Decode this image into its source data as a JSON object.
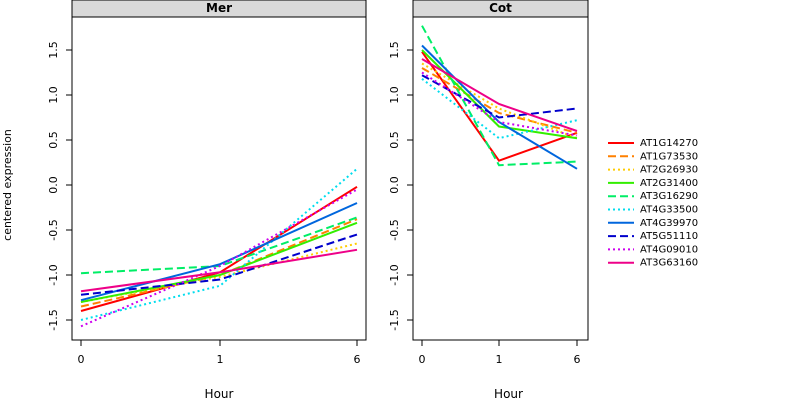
{
  "chart_data": [
    {
      "type": "line",
      "title": "Mer",
      "xlabel": "Hour",
      "ylabel": "centered expression",
      "x_ticks": [
        "0",
        "1",
        "6"
      ],
      "y_ticks": [
        "-1.5",
        "-1.0",
        "-0.5",
        "0.0",
        "0.5",
        "1.0",
        "1.5"
      ],
      "ylim": [
        -1.7,
        1.85
      ],
      "series": [
        {
          "name": "AT1G14270",
          "color": "#ff0000",
          "dash": "solid",
          "values": [
            -1.4,
            -0.97,
            -0.02
          ]
        },
        {
          "name": "AT1G73530",
          "color": "#ff8000",
          "dash": "dashed",
          "values": [
            -1.35,
            -1.0,
            -0.38
          ]
        },
        {
          "name": "AT2G26930",
          "color": "#ffcc00",
          "dash": "dotted",
          "values": [
            -1.3,
            -1.02,
            -0.65
          ]
        },
        {
          "name": "AT2G31400",
          "color": "#33ee00",
          "dash": "solid",
          "values": [
            -1.3,
            -1.0,
            -0.42
          ]
        },
        {
          "name": "AT3G16290",
          "color": "#00ee66",
          "dash": "dashed",
          "values": [
            -0.98,
            -0.9,
            -0.36
          ]
        },
        {
          "name": "AT4G33500",
          "color": "#00ddee",
          "dash": "dotted",
          "values": [
            -1.5,
            -1.12,
            0.18
          ]
        },
        {
          "name": "AT4G39970",
          "color": "#0066dd",
          "dash": "solid",
          "values": [
            -1.28,
            -0.88,
            -0.2
          ]
        },
        {
          "name": "AT5G51110",
          "color": "#0000cc",
          "dash": "dashed",
          "values": [
            -1.22,
            -1.05,
            -0.55
          ]
        },
        {
          "name": "AT4G09010",
          "color": "#cc00ee",
          "dash": "dotted",
          "values": [
            -1.57,
            -0.9,
            -0.05
          ]
        },
        {
          "name": "AT3G63160",
          "color": "#ee0088",
          "dash": "solid",
          "values": [
            -1.18,
            -0.97,
            -0.72
          ]
        }
      ]
    },
    {
      "type": "line",
      "title": "Cot",
      "xlabel": "Hour",
      "ylabel": "",
      "x_ticks": [
        "0",
        "1",
        "6"
      ],
      "y_ticks": [
        "-1.5",
        "-1.0",
        "-0.5",
        "0.0",
        "0.5",
        "1.0",
        "1.5"
      ],
      "ylim": [
        -1.7,
        1.85
      ],
      "series": [
        {
          "name": "AT1G14270",
          "color": "#ff0000",
          "dash": "solid",
          "values": [
            1.48,
            0.27,
            0.58
          ]
        },
        {
          "name": "AT1G73530",
          "color": "#ff8000",
          "dash": "dashed",
          "values": [
            1.3,
            0.8,
            0.58
          ]
        },
        {
          "name": "AT2G26930",
          "color": "#ffcc00",
          "dash": "dotted",
          "values": [
            1.35,
            0.85,
            0.52
          ]
        },
        {
          "name": "AT2G31400",
          "color": "#33ee00",
          "dash": "solid",
          "values": [
            1.5,
            0.65,
            0.52
          ]
        },
        {
          "name": "AT3G16290",
          "color": "#00ee66",
          "dash": "dashed",
          "values": [
            1.77,
            0.22,
            0.26
          ]
        },
        {
          "name": "AT4G33500",
          "color": "#00ddee",
          "dash": "dotted",
          "values": [
            1.18,
            0.52,
            0.72
          ]
        },
        {
          "name": "AT4G39970",
          "color": "#0066dd",
          "dash": "solid",
          "values": [
            1.55,
            0.7,
            0.18
          ]
        },
        {
          "name": "AT5G51110",
          "color": "#0000cc",
          "dash": "dashed",
          "values": [
            1.22,
            0.75,
            0.85
          ]
        },
        {
          "name": "AT4G09010",
          "color": "#cc00ee",
          "dash": "dotted",
          "values": [
            1.25,
            0.7,
            0.55
          ]
        },
        {
          "name": "AT3G63160",
          "color": "#ee0088",
          "dash": "solid",
          "values": [
            1.4,
            0.9,
            0.6
          ]
        }
      ]
    }
  ]
}
